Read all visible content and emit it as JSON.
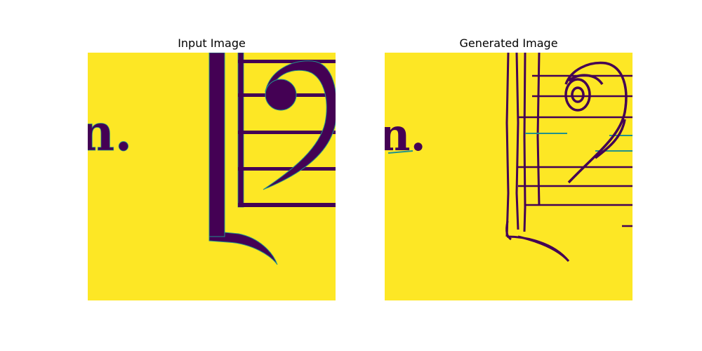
{
  "panels": [
    {
      "title": "Input Image"
    },
    {
      "title": "Generated Image"
    }
  ],
  "colors": {
    "background_yellow": "#fde725",
    "ink_purple": "#440154",
    "edge_teal": "#21918c",
    "figure_background": "#ffffff"
  },
  "content": {
    "visible_text_fragment": "n."
  }
}
